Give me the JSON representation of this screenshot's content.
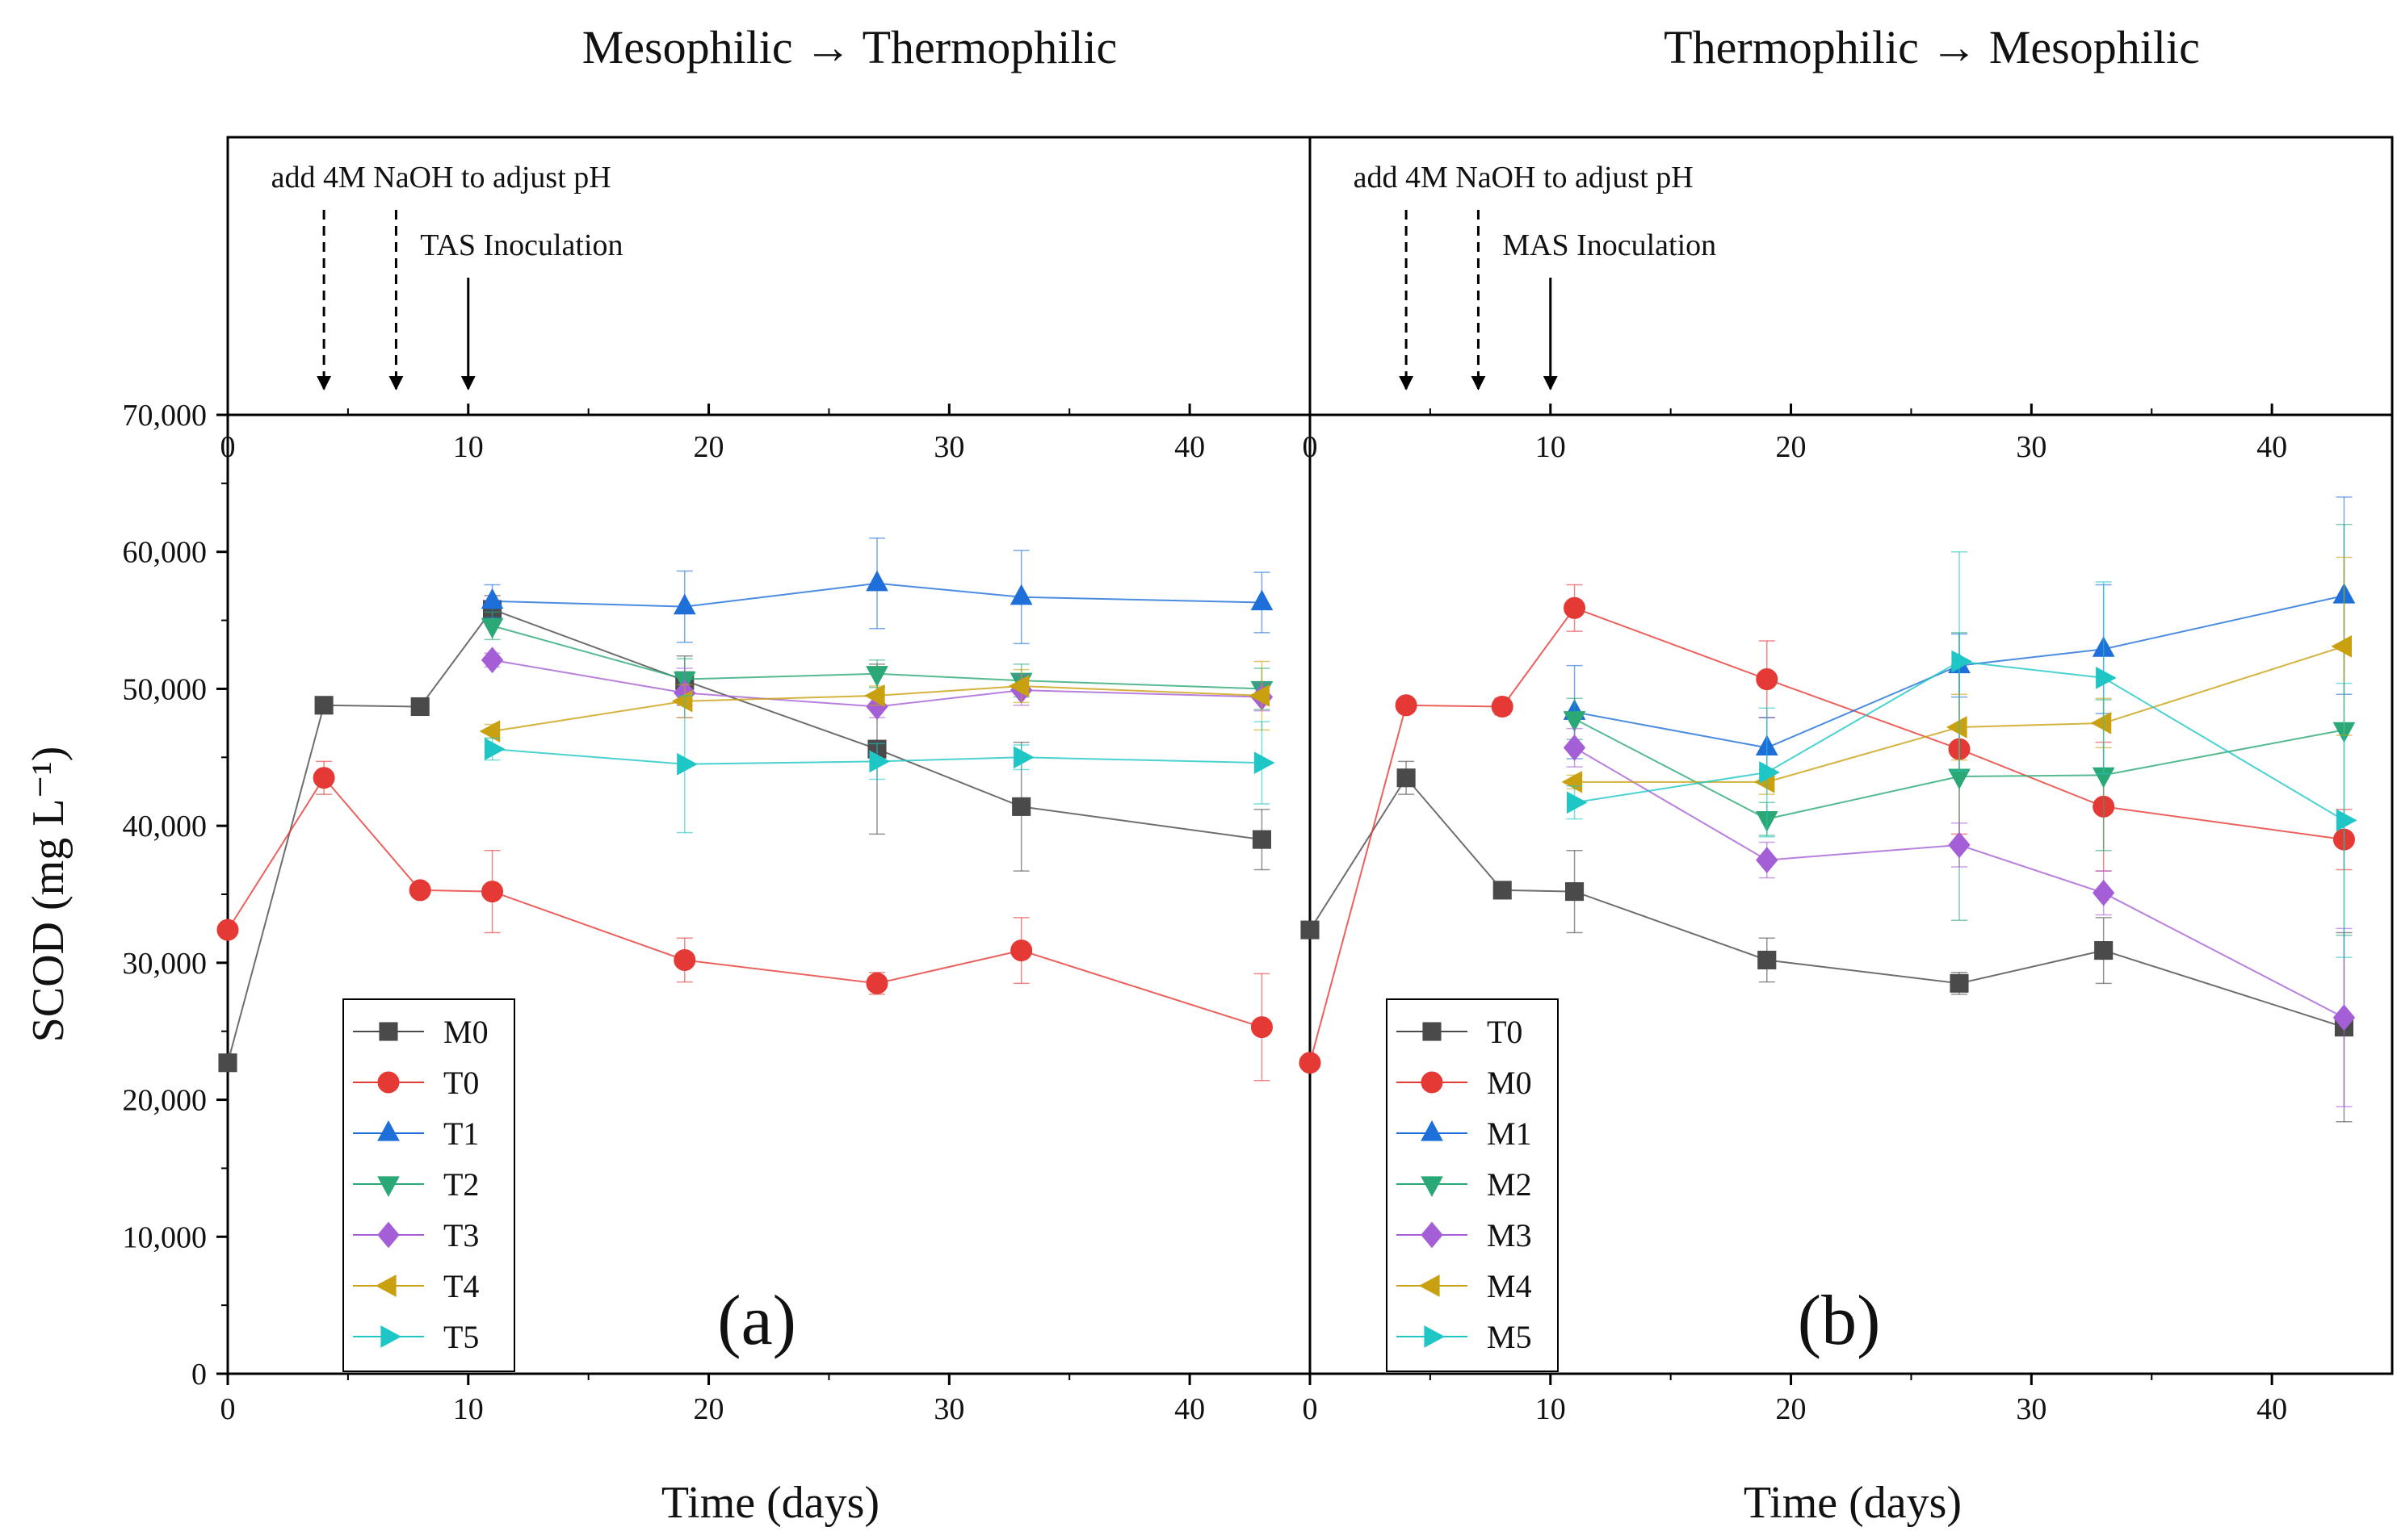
{
  "figure": {
    "panels": [
      {
        "header": "Mesophilic → Thermophilic",
        "letter": "(a)",
        "annotations": [
          {
            "text": "add 4M NaOH to adjust pH",
            "arrows_at": [
              4,
              7
            ]
          },
          {
            "text": "TAS Inoculation",
            "arrows_at": [
              10
            ]
          }
        ]
      },
      {
        "header": "Thermophilic → Mesophilic",
        "letter": "(b)",
        "annotations": [
          {
            "text": "add 4M NaOH to adjust pH",
            "arrows_at": [
              4,
              7
            ]
          },
          {
            "text": "MAS Inoculation",
            "arrows_at": [
              10
            ]
          }
        ]
      }
    ],
    "y_tick_labels": [
      "0",
      "10,000",
      "20,000",
      "30,000",
      "40,000",
      "50,000",
      "60,000",
      "70,000"
    ],
    "x_tick_labels": [
      "0",
      "10",
      "20",
      "30",
      "40"
    ]
  },
  "chart_data": [
    {
      "type": "line",
      "panel": "(a)",
      "title": "Mesophilic → Thermophilic",
      "xlabel": "Time (days)",
      "ylabel": "SCOD (mg L⁻¹)",
      "xlim": [
        0,
        45
      ],
      "ylim": [
        0,
        70000
      ],
      "series": [
        {
          "name": "M0",
          "color": "#4a4a4a",
          "marker": "square",
          "x": [
            0,
            4,
            8,
            11,
            19,
            27,
            33,
            43
          ],
          "y": [
            22700,
            48800,
            48700,
            55800,
            50600,
            45600,
            41400,
            39000
          ],
          "err": [
            300,
            500,
            600,
            1000,
            1800,
            6200,
            4700,
            2200
          ]
        },
        {
          "name": "T0",
          "color": "#e53935",
          "marker": "circle",
          "x": [
            0,
            4,
            8,
            11,
            19,
            27,
            33,
            43
          ],
          "y": [
            32400,
            43500,
            35300,
            35200,
            30200,
            28500,
            30900,
            25300
          ],
          "err": [
            300,
            1200,
            400,
            3000,
            1600,
            800,
            2400,
            3900
          ]
        },
        {
          "name": "T1",
          "color": "#1e6fd9",
          "marker": "triangle-up",
          "x": [
            11,
            19,
            27,
            33,
            43
          ],
          "y": [
            56400,
            56000,
            57700,
            56700,
            56300
          ],
          "err": [
            1200,
            2600,
            3300,
            3400,
            2200
          ]
        },
        {
          "name": "T2",
          "color": "#2aa876",
          "marker": "triangle-down",
          "x": [
            11,
            19,
            27,
            33,
            43
          ],
          "y": [
            54600,
            50700,
            51100,
            50600,
            50000
          ],
          "err": [
            1000,
            1500,
            1000,
            1200,
            1500
          ]
        },
        {
          "name": "T3",
          "color": "#a55fd6",
          "marker": "diamond",
          "x": [
            11,
            19,
            27,
            33,
            43
          ],
          "y": [
            52100,
            49700,
            48700,
            49900,
            49400
          ],
          "err": [
            500,
            1800,
            800,
            1100,
            1000
          ]
        },
        {
          "name": "T4",
          "color": "#c9a010",
          "marker": "triangle-left",
          "x": [
            11,
            19,
            27,
            33,
            43
          ],
          "y": [
            46900,
            49100,
            49500,
            50200,
            49500
          ],
          "err": [
            500,
            1200,
            700,
            1200,
            2500
          ]
        },
        {
          "name": "T5",
          "color": "#1fc6c6",
          "marker": "triangle-right",
          "x": [
            11,
            19,
            27,
            33,
            43
          ],
          "y": [
            45600,
            44500,
            44700,
            45000,
            44600
          ],
          "err": [
            800,
            5000,
            1300,
            900,
            3000
          ]
        }
      ]
    },
    {
      "type": "line",
      "panel": "(b)",
      "title": "Thermophilic → Mesophilic",
      "xlabel": "Time (days)",
      "ylabel": "SCOD (mg L⁻¹)",
      "xlim": [
        0,
        45
      ],
      "ylim": [
        0,
        70000
      ],
      "series": [
        {
          "name": "T0",
          "color": "#4a4a4a",
          "marker": "square",
          "x": [
            0,
            4,
            8,
            11,
            19,
            27,
            33,
            43
          ],
          "y": [
            32400,
            43500,
            35300,
            35200,
            30200,
            28500,
            30900,
            25300
          ],
          "err": [
            300,
            1200,
            400,
            3000,
            1600,
            800,
            2400,
            6900
          ]
        },
        {
          "name": "M0",
          "color": "#e53935",
          "marker": "circle",
          "x": [
            0,
            4,
            8,
            11,
            19,
            27,
            33,
            43
          ],
          "y": [
            22700,
            48800,
            48700,
            55900,
            50700,
            45600,
            41400,
            39000
          ],
          "err": [
            300,
            500,
            600,
            1700,
            2800,
            6200,
            4700,
            2200
          ]
        },
        {
          "name": "M1",
          "color": "#1e6fd9",
          "marker": "triangle-up",
          "x": [
            11,
            19,
            27,
            33,
            43
          ],
          "y": [
            48300,
            45700,
            51700,
            52900,
            56800
          ],
          "err": [
            3400,
            2200,
            2300,
            4700,
            7200
          ]
        },
        {
          "name": "M2",
          "color": "#2aa876",
          "marker": "triangle-down",
          "x": [
            11,
            19,
            27,
            33,
            43
          ],
          "y": [
            47800,
            40500,
            43600,
            43700,
            47000
          ],
          "err": [
            1500,
            1200,
            10500,
            5500,
            15000
          ]
        },
        {
          "name": "M3",
          "color": "#a55fd6",
          "marker": "diamond",
          "x": [
            11,
            19,
            27,
            33,
            43
          ],
          "y": [
            45700,
            37500,
            38600,
            35100,
            26000
          ],
          "err": [
            1400,
            1300,
            1600,
            1600,
            6500
          ]
        },
        {
          "name": "M4",
          "color": "#c9a010",
          "marker": "triangle-left",
          "x": [
            11,
            19,
            27,
            33,
            43
          ],
          "y": [
            43200,
            43200,
            47200,
            47500,
            53100
          ],
          "err": [
            500,
            900,
            2400,
            1800,
            6500
          ]
        },
        {
          "name": "M5",
          "color": "#1fc6c6",
          "marker": "triangle-right",
          "x": [
            11,
            19,
            27,
            33,
            43
          ],
          "y": [
            41700,
            43900,
            52000,
            50800,
            40400
          ],
          "err": [
            1200,
            4700,
            8000,
            7000,
            10000
          ]
        }
      ]
    }
  ]
}
